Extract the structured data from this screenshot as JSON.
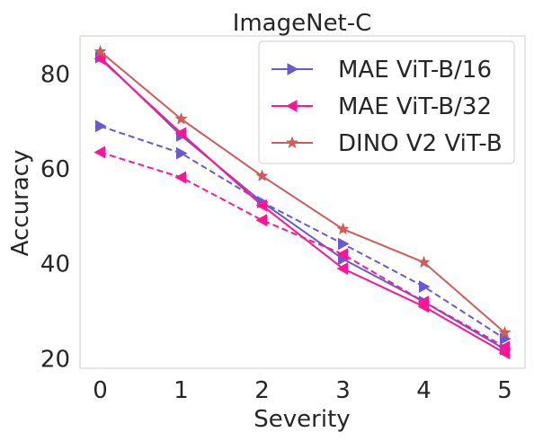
{
  "chart_data": {
    "type": "line",
    "title": "ImageNet-C",
    "xlabel": "Severity",
    "ylabel": "Accuracy",
    "x": [
      0,
      1,
      2,
      3,
      4,
      5
    ],
    "xticks": [
      "0",
      "1",
      "2",
      "3",
      "4",
      "5"
    ],
    "yticks": [
      20,
      40,
      60,
      80
    ],
    "xlim": [
      -0.25,
      5.25
    ],
    "ylim": [
      18,
      88
    ],
    "grid": false,
    "legend_position": "top-right",
    "legend": [
      {
        "label": "MAE ViT-B/16",
        "color": "#6a5acd",
        "marker": "triangle-right"
      },
      {
        "label": "MAE ViT-B/32",
        "color": "#ff1493",
        "marker": "triangle-left"
      },
      {
        "label": "DINO V2 ViT-B",
        "color": "#cd5c5c",
        "marker": "star"
      }
    ],
    "series": [
      {
        "name": "MAE ViT-B/16",
        "style": "solid",
        "color": "#6a5acd",
        "marker": "triangle-right",
        "values": [
          83.5,
          67.0,
          53.0,
          41.0,
          32.0,
          22.0
        ]
      },
      {
        "style": "dashed",
        "color": "#6a5acd",
        "marker": "triangle-right",
        "values": [
          69.0,
          63.3,
          53.0,
          44.2,
          35.2,
          24.2
        ]
      },
      {
        "name": "MAE ViT-B/32",
        "style": "solid",
        "color": "#ff1493",
        "marker": "triangle-left",
        "values": [
          83.2,
          67.5,
          52.3,
          39.0,
          31.0,
          21.2
        ]
      },
      {
        "style": "dashed",
        "color": "#ff1493",
        "marker": "triangle-left",
        "values": [
          63.5,
          58.2,
          49.2,
          42.0,
          32.0,
          22.5
        ]
      },
      {
        "name": "DINO V2 ViT-B",
        "style": "solid",
        "color": "#cd5c5c",
        "marker": "star",
        "values": [
          84.7,
          70.5,
          58.5,
          47.3,
          40.3,
          25.5
        ]
      }
    ]
  }
}
